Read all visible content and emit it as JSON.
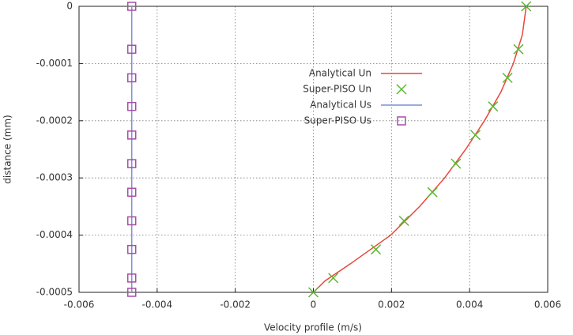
{
  "chart_data": {
    "type": "line",
    "x_label": "Velocity profile (m/s)",
    "y_label": "distance (mm)",
    "xlim": [
      -0.006,
      0.006
    ],
    "ylim": [
      -0.0005,
      0
    ],
    "xticks": [
      -0.006,
      -0.004,
      -0.002,
      0,
      0.002,
      0.004,
      0.006
    ],
    "yticks": [
      -0.0005,
      -0.0004,
      -0.0003,
      -0.0002,
      -0.0001,
      0
    ],
    "grid": true,
    "legend": "center",
    "series": [
      {
        "name": "Analytical Un",
        "color": "#e8463b",
        "style": "line",
        "x": [
          0,
          0.0003,
          0.00095,
          0.00198,
          0.00272,
          0.00336,
          0.0039,
          0.00438,
          0.0048,
          0.00512,
          0.00535,
          0.00545
        ],
        "y": [
          -0.0005,
          -0.00048,
          -0.00045,
          -0.0004,
          -0.00035,
          -0.0003,
          -0.00025,
          -0.0002,
          -0.00015,
          -0.0001,
          -5e-05,
          0
        ]
      },
      {
        "name": "Super-PISO Un",
        "color": "#5cb832",
        "style": "marker",
        "marker": "x",
        "x": [
          0,
          0.00051,
          0.0016,
          0.00232,
          0.00305,
          0.00365,
          0.00415,
          0.0046,
          0.00497,
          0.00525,
          0.00545
        ],
        "y": [
          -0.0005,
          -0.000475,
          -0.000425,
          -0.000375,
          -0.000325,
          -0.000275,
          -0.000225,
          -0.000175,
          -0.000125,
          -7.5e-05,
          0
        ]
      },
      {
        "name": "Analytical Us",
        "color": "#7f8fd6",
        "style": "line",
        "x": [
          -0.00465,
          -0.00465
        ],
        "y": [
          -0.0005,
          0
        ]
      },
      {
        "name": "Super-PISO Us",
        "color": "#a64ea6",
        "style": "marker",
        "marker": "square",
        "x": [
          -0.00465,
          -0.00465,
          -0.00465,
          -0.00465,
          -0.00465,
          -0.00465,
          -0.00465,
          -0.00465,
          -0.00465,
          -0.00465,
          -0.00465
        ],
        "y": [
          -0.0005,
          -0.000475,
          -0.000425,
          -0.000375,
          -0.000325,
          -0.000275,
          -0.000225,
          -0.000175,
          -0.000125,
          -7.5e-05,
          0
        ]
      }
    ]
  }
}
